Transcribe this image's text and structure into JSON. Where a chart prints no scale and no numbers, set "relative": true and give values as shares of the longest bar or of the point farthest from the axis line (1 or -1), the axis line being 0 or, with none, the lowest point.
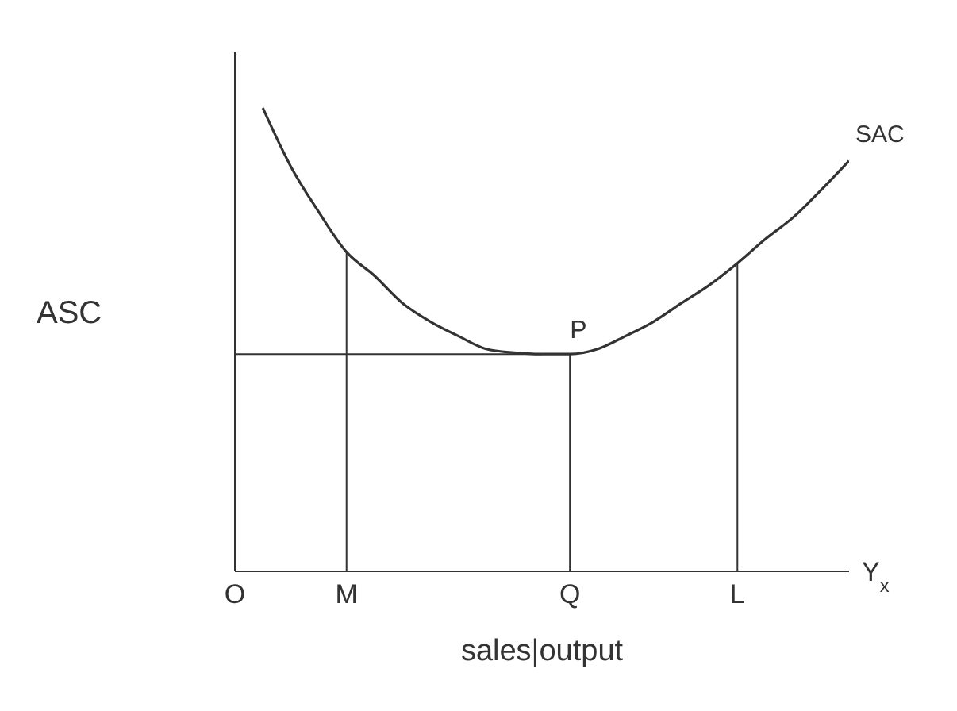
{
  "chart_data": {
    "type": "line",
    "relative": true,
    "ylabel": "ASC",
    "xlabel": "sales|output",
    "categories": [
      "O",
      null,
      null,
      null,
      "M",
      null,
      null,
      null,
      null,
      null,
      null,
      null,
      "Q",
      null,
      null,
      null,
      null,
      null,
      "L",
      null,
      null,
      null,
      null
    ],
    "series": [
      {
        "name": "SAC",
        "color": "#333333",
        "values": [
          null,
          1.0,
          0.874,
          0.776,
          0.689,
          0.638,
          0.579,
          0.539,
          0.508,
          0.48,
          0.472,
          0.469,
          0.469,
          0.48,
          0.508,
          0.539,
          0.579,
          0.618,
          0.665,
          0.717,
          0.764,
          0.823,
          0.886
        ]
      }
    ],
    "ref_lines": [
      {
        "axis": "y",
        "value": 0.469
      },
      {
        "axis": "x",
        "value": "M"
      },
      {
        "axis": "x",
        "value": "Q"
      },
      {
        "axis": "x",
        "value": "L"
      }
    ],
    "annotations": [
      {
        "text": "P",
        "x": "Q",
        "y": 0.469
      },
      "Y$_{x}$"
    ],
    "marker": "none",
    "line_style": "solid"
  }
}
